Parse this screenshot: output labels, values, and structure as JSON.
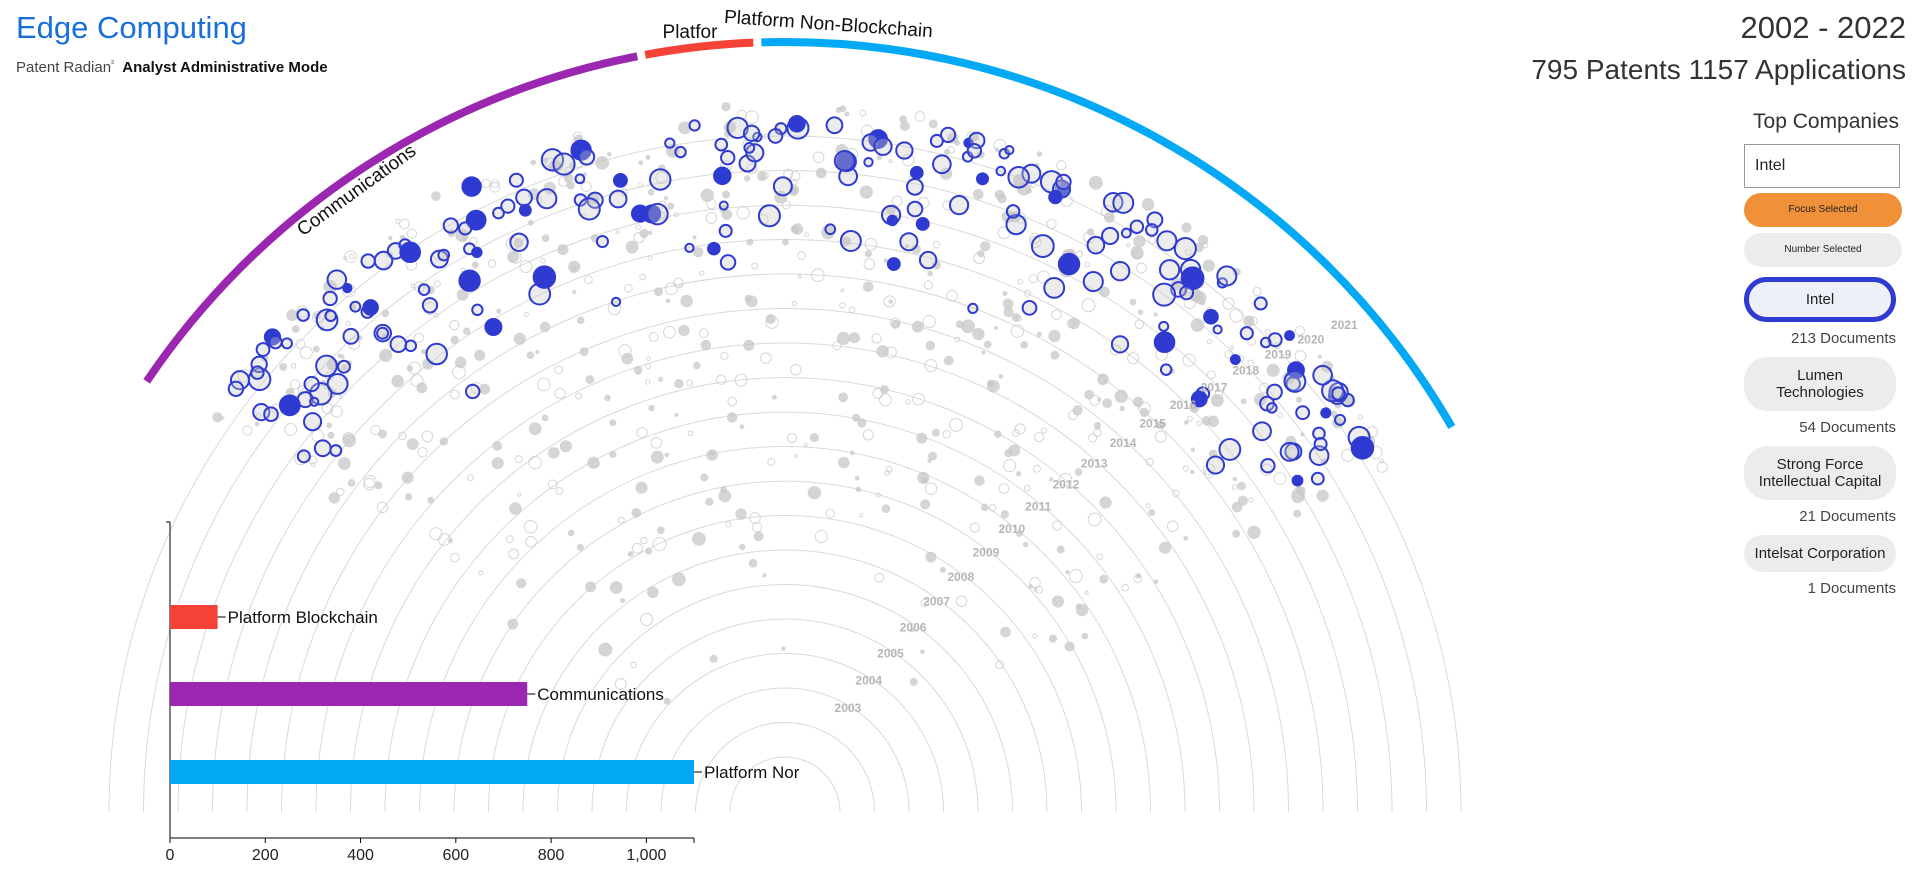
{
  "header": {
    "title": "Edge Computing",
    "subtitle_prefix": "Patent Radian",
    "subtitle_mark": "²",
    "subtitle_mode": "Analyst Administrative Mode",
    "year_range": "2002 - 2022",
    "summary": "795 Patents 1157 Applications"
  },
  "panel": {
    "title": "Top Companies",
    "search_value": "Intel",
    "focus_button": "Focus Selected",
    "number_button": "Number Selected",
    "companies": [
      {
        "name": "Intel",
        "documents": "213 Documents",
        "selected": true
      },
      {
        "name": "Lumen Technologies",
        "documents": "54 Documents",
        "selected": false
      },
      {
        "name": "Strong Force Intellectual Capital",
        "documents": "21 Documents",
        "selected": false
      },
      {
        "name": "Intelsat Corporation",
        "documents": "1 Documents",
        "selected": false
      }
    ]
  },
  "colors": {
    "communications": "#9b27b0",
    "platform_blockchain": "#f44336",
    "platform_non_blockchain": "#03a9f4",
    "highlight": "#2f3bd0",
    "background_dot": "#c8c8c8",
    "ring": "#d9d9d9",
    "accent_orange": "#f0913a",
    "title_blue": "#1a6fd6"
  },
  "chart_data": [
    {
      "type": "scatter",
      "subtype": "radial-arc",
      "rings": [
        "2003",
        "2004",
        "2005",
        "2006",
        "2007",
        "2008",
        "2009",
        "2010",
        "2011",
        "2012",
        "2013",
        "2014",
        "2015",
        "2016",
        "2017",
        "2018",
        "2019",
        "2020",
        "2021"
      ],
      "categories": [
        {
          "name": "Communications",
          "span": [
            0.0,
            0.39
          ]
        },
        {
          "name": "Platfor",
          "span": [
            0.39,
            0.465
          ]
        },
        {
          "name": "Platform Non-Blockchain",
          "span": [
            0.465,
            1.0
          ]
        }
      ],
      "highlight_company": "Intel",
      "highlight_count": 213
    },
    {
      "type": "bar",
      "orientation": "horizontal",
      "categories": [
        "Platform Blockchain",
        "Communications",
        "Platform Nor"
      ],
      "values": [
        100,
        750,
        1100
      ],
      "xlim": [
        0,
        1100
      ],
      "xticks": [
        "0",
        "200",
        "400",
        "600",
        "800",
        "1,000"
      ]
    }
  ]
}
